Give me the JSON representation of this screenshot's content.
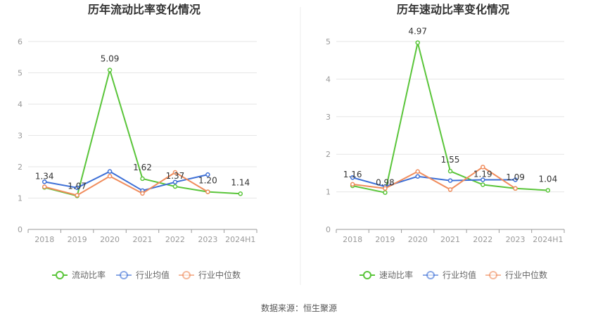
{
  "footer": {
    "source": "数据来源：恒生聚源"
  },
  "chart_data": [
    {
      "type": "line",
      "title": "历年流动比率变化情况",
      "categories": [
        "2018",
        "2019",
        "2020",
        "2021",
        "2022",
        "2023",
        "2024H1"
      ],
      "ylim": [
        0,
        6
      ],
      "yticks": [
        "0",
        "1",
        "2",
        "3",
        "4",
        "5",
        "6"
      ],
      "series": [
        {
          "name": "流动比率",
          "color": "#5ac53a",
          "values": [
            1.34,
            1.07,
            5.09,
            1.62,
            1.37,
            1.2,
            1.14
          ],
          "labels": [
            "1.34",
            "1.07",
            "5.09",
            "1.62",
            "1.37",
            "1.20",
            "1.14"
          ]
        },
        {
          "name": "行业均值",
          "color": "#3d6fd6",
          "values": [
            1.52,
            1.33,
            1.85,
            1.24,
            1.51,
            1.75,
            null
          ]
        },
        {
          "name": "行业中位数",
          "color": "#f08c5c",
          "values": [
            1.36,
            1.09,
            1.7,
            1.15,
            1.82,
            1.2,
            null
          ]
        }
      ]
    },
    {
      "type": "line",
      "title": "历年速动比率变化情况",
      "categories": [
        "2018",
        "2019",
        "2020",
        "2021",
        "2022",
        "2023",
        "2024H1"
      ],
      "ylim": [
        0,
        5
      ],
      "yticks": [
        "0",
        "1",
        "2",
        "3",
        "4",
        "5"
      ],
      "series": [
        {
          "name": "速动比率",
          "color": "#5ac53a",
          "values": [
            1.16,
            0.98,
            4.97,
            1.55,
            1.19,
            1.09,
            1.04
          ],
          "labels": [
            "1.16",
            "0.98",
            "4.97",
            "1.55",
            "1.19",
            "1.09",
            "1.04"
          ]
        },
        {
          "name": "行业均值",
          "color": "#3d6fd6",
          "values": [
            1.38,
            1.14,
            1.41,
            1.3,
            1.32,
            1.32,
            null
          ]
        },
        {
          "name": "行业中位数",
          "color": "#f08c5c",
          "values": [
            1.2,
            1.09,
            1.54,
            1.06,
            1.66,
            1.09,
            null
          ]
        }
      ]
    }
  ]
}
